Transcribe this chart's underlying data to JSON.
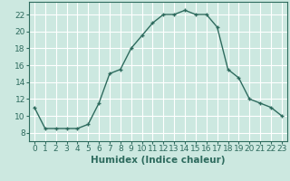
{
  "x": [
    0,
    1,
    2,
    3,
    4,
    5,
    6,
    7,
    8,
    9,
    10,
    11,
    12,
    13,
    14,
    15,
    16,
    17,
    18,
    19,
    20,
    21,
    22,
    23
  ],
  "y": [
    11,
    8.5,
    8.5,
    8.5,
    8.5,
    9,
    11.5,
    15,
    15.5,
    18,
    19.5,
    21,
    22,
    22,
    22.5,
    22,
    22,
    20.5,
    15.5,
    14.5,
    12,
    11.5,
    11,
    10
  ],
  "line_color": "#2e6b5e",
  "marker_color": "#2e6b5e",
  "bg_color": "#cce8e0",
  "grid_color": "#ffffff",
  "xlabel": "Humidex (Indice chaleur)",
  "xlim": [
    -0.5,
    23.5
  ],
  "ylim": [
    7,
    23.5
  ],
  "yticks": [
    8,
    10,
    12,
    14,
    16,
    18,
    20,
    22
  ],
  "xticks": [
    0,
    1,
    2,
    3,
    4,
    5,
    6,
    7,
    8,
    9,
    10,
    11,
    12,
    13,
    14,
    15,
    16,
    17,
    18,
    19,
    20,
    21,
    22,
    23
  ],
  "tick_font_size": 6.5,
  "label_font_size": 7.5
}
